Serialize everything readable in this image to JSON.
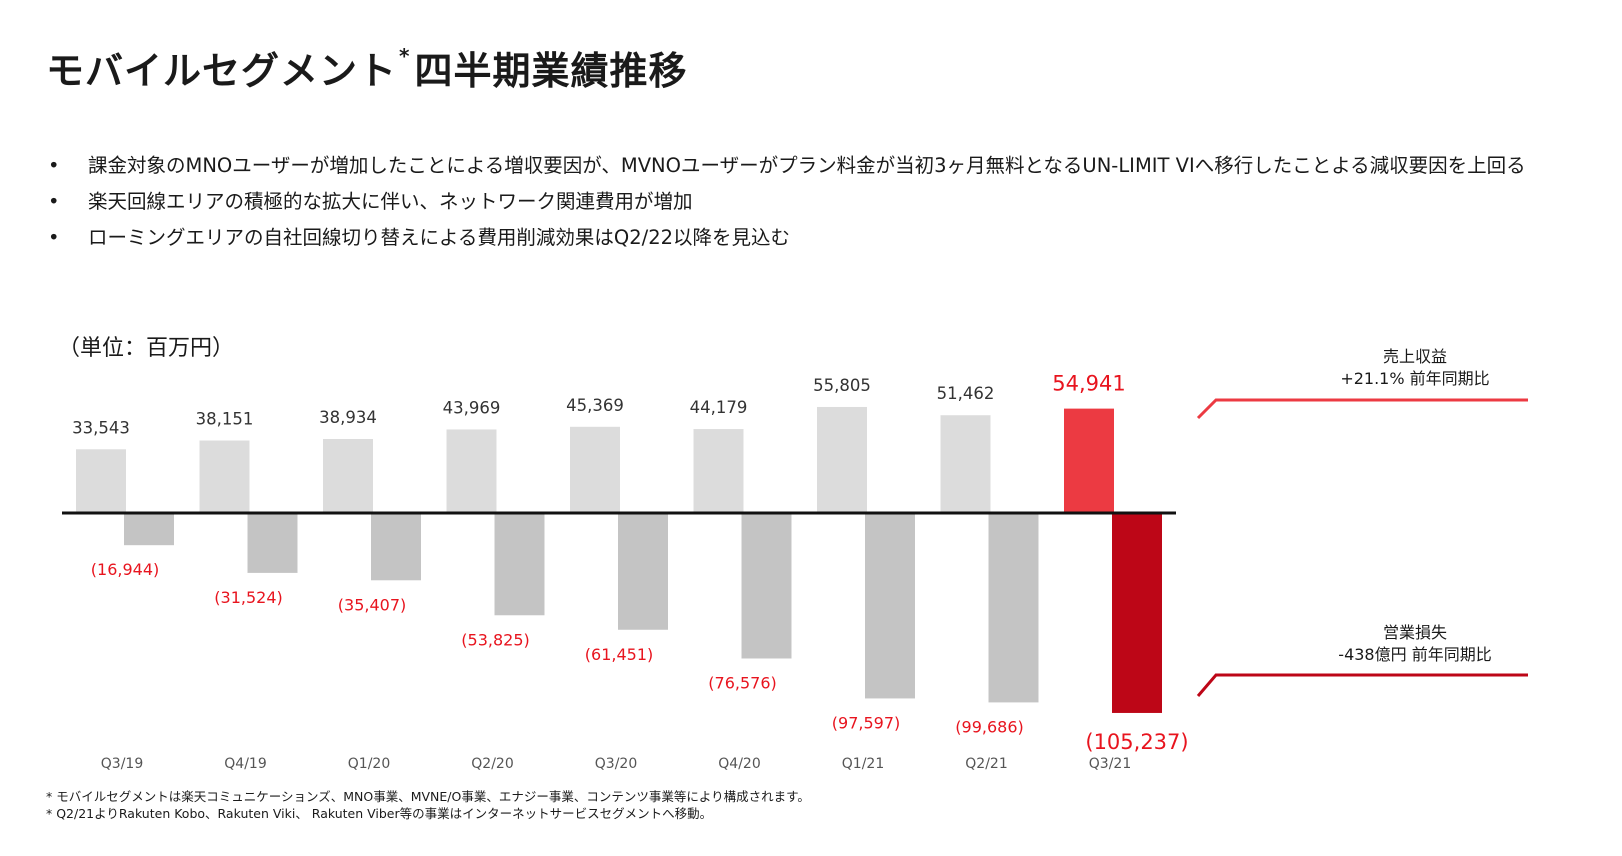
{
  "title": "モバイルセグメント",
  "title_mark": "*",
  "title_suffix": "四半期業績推移",
  "bullets": [
    "課金対象のMNOユーザーが増加したことによる増収要因が、MVNOユーザーがプラン料金が当初3ヶ月無料となるUN-LIMIT VIへ移行したことよる減収要因を上回る",
    "楽天回線エリアの積極的な拡大に伴い、ネットワーク関連費用が増加",
    "ローミングエリアの自社回線切り替えによる費用削減効果はQ2/22以降を見込む"
  ],
  "bullet_symbol": "•",
  "unit_label": "（単位：百万円）",
  "chart_data": {
    "type": "bar",
    "categories": [
      "Q3/19",
      "Q4/19",
      "Q1/20",
      "Q2/20",
      "Q3/20",
      "Q4/20",
      "Q1/21",
      "Q2/21",
      "Q3/21"
    ],
    "series": [
      {
        "values": [
          33543,
          38151,
          38934,
          43969,
          45369,
          44179,
          55805,
          51462,
          54941
        ]
      },
      {
        "values": [
          -16944,
          -31524,
          -35407,
          -53825,
          -61451,
          -76576,
          -97597,
          -99686,
          -105237
        ]
      }
    ],
    "value_labels": {
      "revenue": [
        "33,543",
        "38,151",
        "38,934",
        "43,969",
        "45,369",
        "44,179",
        "55,805",
        "51,462",
        "54,941"
      ],
      "loss": [
        "(16,944)",
        "(31,524)",
        "(35,407)",
        "(53,825)",
        "(61,451)",
        "(76,576)",
        "(97,597)",
        "(99,686)",
        "(105,237)"
      ]
    },
    "ylim": [
      -110000,
      60000
    ],
    "grid": false,
    "colors": {
      "revenue": "#dcdcdc",
      "loss": "#c4c4c4",
      "revenue_highlight": "#ec3a42",
      "loss_highlight": "#bd0617",
      "label_red": "#e8141e",
      "label_dark": "#333333",
      "axis": "#111111",
      "category": "#555555"
    }
  },
  "legend": {
    "revenue_title": "売上収益",
    "revenue_change": "+21.1% 前年同期比",
    "loss_title": "営業損失",
    "loss_change": "-438億円 前年同期比"
  },
  "footnotes": [
    "* モバイルセグメントは楽天コミュニケーションズ、MNO事業、MVNE/O事業、エナジー事業、コンテンツ事業等により構成されます。",
    "* Q2/21よりRakuten Kobo、Rakuten Viki、 Rakuten Viber等の事業はインターネットサービスセグメントへ移動。"
  ]
}
